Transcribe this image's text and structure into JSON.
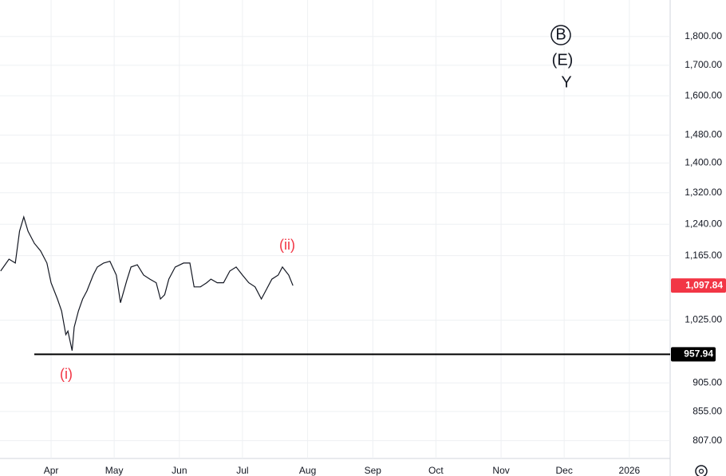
{
  "chart_data": {
    "type": "line",
    "color": "#131722",
    "log_scale": true,
    "grid": true,
    "x": [
      67,
      71,
      74,
      76,
      78,
      80,
      83,
      86,
      89,
      91,
      94,
      96,
      98,
      99,
      101,
      102,
      104,
      106,
      108,
      111,
      113,
      116,
      119,
      122,
      124,
      127,
      129,
      132,
      135,
      138,
      141,
      143,
      145,
      147,
      150,
      154,
      157,
      159,
      162,
      165,
      167,
      170,
      173,
      176,
      179,
      182,
      185,
      188,
      191,
      193,
      196,
      199,
      201,
      204,
      206
    ],
    "values": [
      1130,
      1157,
      1148,
      1223,
      1258,
      1223,
      1194,
      1176,
      1148,
      1104,
      1069,
      1044,
      996,
      1003,
      965,
      1011,
      1044,
      1069,
      1086,
      1121,
      1139,
      1148,
      1152,
      1121,
      1061,
      1109,
      1139,
      1144,
      1121,
      1112,
      1104,
      1069,
      1078,
      1112,
      1139,
      1148,
      1148,
      1095,
      1095,
      1104,
      1112,
      1104,
      1104,
      1130,
      1139,
      1121,
      1104,
      1095,
      1069,
      1086,
      1112,
      1121,
      1139,
      1121,
      1097.84
    ],
    "xlim": [
      66.7,
      385.4
    ],
    "xticks": [
      {
        "value": 91,
        "label": "Apr"
      },
      {
        "value": 121,
        "label": "May"
      },
      {
        "value": 152,
        "label": "Jun"
      },
      {
        "value": 182,
        "label": "Jul"
      },
      {
        "value": 213,
        "label": "Aug"
      },
      {
        "value": 244,
        "label": "Sep"
      },
      {
        "value": 274,
        "label": "Oct"
      },
      {
        "value": 305,
        "label": "Nov"
      },
      {
        "value": 335,
        "label": "Dec"
      },
      {
        "value": 366,
        "label": "2026"
      }
    ],
    "ylim": [
      779,
      1935
    ],
    "yticks": [
      {
        "value": 807,
        "label": "807.00"
      },
      {
        "value": 855,
        "label": "855.00"
      },
      {
        "value": 905,
        "label": "905.00"
      },
      {
        "value": 1025,
        "label": "1,025.00"
      },
      {
        "value": 1165,
        "label": "1,165.00"
      },
      {
        "value": 1240,
        "label": "1,240.00"
      },
      {
        "value": 1320,
        "label": "1,320.00"
      },
      {
        "value": 1400,
        "label": "1,400.00"
      },
      {
        "value": 1480,
        "label": "1,480.00"
      },
      {
        "value": 1600,
        "label": "1,600.00"
      },
      {
        "value": 1700,
        "label": "1,700.00"
      },
      {
        "value": 1800,
        "label": "1,800.00"
      }
    ],
    "price_line": {
      "value": 957.94,
      "color": "#000000"
    },
    "last_price": {
      "value": 1097.84,
      "label": "1,097.84",
      "color": "#f23645"
    },
    "annotations": [
      {
        "text": "(i)",
        "color": "#f23645"
      },
      {
        "text": "(ii)",
        "color": "#f23645"
      },
      {
        "text": "B",
        "color": "#131722"
      },
      {
        "text": "(E)",
        "color": "#131722"
      },
      {
        "text": "Y",
        "color": "#131722"
      }
    ]
  }
}
